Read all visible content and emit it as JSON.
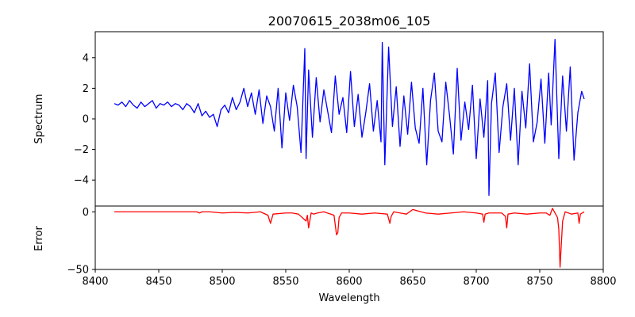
{
  "chart_data": [
    {
      "type": "line",
      "title": "20070615_2038m06_105",
      "xlabel": "",
      "ylabel": "Spectrum",
      "xlim": [
        8400,
        8800
      ],
      "ylim": [
        -5.7,
        5.7
      ],
      "yticks": [
        -4,
        -2,
        0,
        2,
        4
      ],
      "grid": false,
      "series": [
        {
          "color": "#0000ff",
          "x": [
            8415,
            8418,
            8421,
            8424,
            8427,
            8430,
            8433,
            8436,
            8439,
            8442,
            8445,
            8448,
            8451,
            8454,
            8457,
            8460,
            8463,
            8466,
            8469,
            8472,
            8475,
            8478,
            8481,
            8484,
            8487,
            8490,
            8493,
            8496,
            8499,
            8502,
            8505,
            8508,
            8511,
            8514,
            8517,
            8520,
            8523,
            8526,
            8529,
            8532,
            8535,
            8538,
            8541,
            8544,
            8547,
            8550,
            8553,
            8556,
            8559,
            8562,
            8565,
            8566,
            8568,
            8571,
            8574,
            8577,
            8580,
            8583,
            8586,
            8589,
            8592,
            8595,
            8598,
            8601,
            8604,
            8607,
            8610,
            8613,
            8616,
            8619,
            8622,
            8625,
            8626,
            8628,
            8631,
            8634,
            8637,
            8640,
            8643,
            8646,
            8649,
            8652,
            8655,
            8658,
            8661,
            8664,
            8667,
            8670,
            8673,
            8676,
            8679,
            8682,
            8685,
            8688,
            8691,
            8694,
            8697,
            8700,
            8703,
            8706,
            8709,
            8710,
            8712,
            8715,
            8718,
            8721,
            8724,
            8727,
            8730,
            8733,
            8736,
            8739,
            8742,
            8745,
            8748,
            8751,
            8754,
            8757,
            8759,
            8762,
            8765,
            8768,
            8771,
            8774,
            8777,
            8780,
            8783,
            8785
          ],
          "values": [
            1.0,
            0.9,
            1.1,
            0.8,
            1.2,
            0.9,
            0.7,
            1.1,
            0.8,
            1.0,
            1.2,
            0.7,
            1.0,
            0.9,
            1.1,
            0.8,
            1.0,
            0.9,
            0.6,
            1.0,
            0.8,
            0.4,
            1.0,
            0.2,
            0.5,
            0.1,
            0.3,
            -0.5,
            0.6,
            0.9,
            0.4,
            1.4,
            0.6,
            1.1,
            2.0,
            0.8,
            1.7,
            0.3,
            1.9,
            -0.3,
            1.5,
            0.8,
            -0.8,
            2.0,
            -1.9,
            1.7,
            -0.1,
            2.2,
            0.8,
            -2.2,
            4.6,
            -2.6,
            3.2,
            -1.2,
            2.7,
            -0.2,
            1.9,
            0.5,
            -0.9,
            2.8,
            0.3,
            1.4,
            -0.9,
            3.1,
            -0.5,
            1.6,
            -1.2,
            0.4,
            2.3,
            -0.8,
            1.2,
            -1.5,
            5.0,
            -3.0,
            4.7,
            -0.5,
            2.1,
            -1.8,
            1.5,
            -1.0,
            2.4,
            -0.6,
            -1.6,
            2.0,
            -3.0,
            1.2,
            3.0,
            -0.8,
            -1.5,
            2.4,
            0.2,
            -2.3,
            3.3,
            -1.4,
            1.1,
            -0.7,
            2.2,
            -2.6,
            1.3,
            -1.2,
            2.5,
            -5.0,
            1.0,
            3.0,
            -2.2,
            0.8,
            2.3,
            -1.4,
            2.0,
            -3.0,
            1.8,
            -0.6,
            3.6,
            -1.5,
            -0.2,
            2.6,
            -1.6,
            3.0,
            -0.4,
            5.2,
            -2.6,
            2.8,
            -0.8,
            3.4,
            -2.7,
            0.4,
            1.8,
            1.3
          ]
        }
      ]
    },
    {
      "type": "line",
      "title": "",
      "xlabel": "Wavelength",
      "ylabel": "Error",
      "xlim": [
        8400,
        8800
      ],
      "ylim": [
        -50,
        5
      ],
      "yticks": [
        -50,
        0
      ],
      "xticks": [
        8400,
        8450,
        8500,
        8550,
        8600,
        8650,
        8700,
        8750,
        8800
      ],
      "grid": false,
      "series": [
        {
          "color": "#ff0000",
          "x": [
            8415,
            8440,
            8470,
            8480,
            8482,
            8484,
            8490,
            8500,
            8510,
            8520,
            8530,
            8536,
            8538,
            8540,
            8550,
            8555,
            8560,
            8566,
            8567,
            8568,
            8570,
            8572,
            8575,
            8580,
            8588,
            8590,
            8591,
            8592,
            8594,
            8600,
            8610,
            8620,
            8630,
            8632,
            8633,
            8635,
            8640,
            8645,
            8650,
            8660,
            8670,
            8680,
            8690,
            8700,
            8705,
            8706,
            8707,
            8710,
            8720,
            8723,
            8724,
            8725,
            8730,
            8740,
            8750,
            8755,
            8758,
            8760,
            8762,
            8764,
            8765,
            8766,
            8768,
            8770,
            8775,
            8780,
            8781,
            8782,
            8785
          ],
          "values": [
            0,
            0,
            0,
            0,
            -1,
            0,
            0,
            -1,
            -0.5,
            -1,
            0,
            -3,
            -10,
            -2,
            -1,
            -1,
            -2,
            -8,
            -3,
            -14,
            -1,
            -2,
            -1,
            0,
            -3,
            -20,
            -18,
            -5,
            -1,
            -1,
            -2,
            -1,
            -2,
            -10,
            -4,
            0,
            -1,
            -2,
            2,
            -1,
            -2,
            -1,
            0,
            -1,
            -2,
            -9,
            -2,
            -1,
            -1,
            -4,
            -14,
            -2,
            -1,
            -2,
            -1,
            -1,
            -3,
            3,
            -1,
            -5,
            -15,
            -48,
            -8,
            0,
            -2,
            -1,
            -10,
            -2,
            0
          ]
        }
      ]
    }
  ]
}
